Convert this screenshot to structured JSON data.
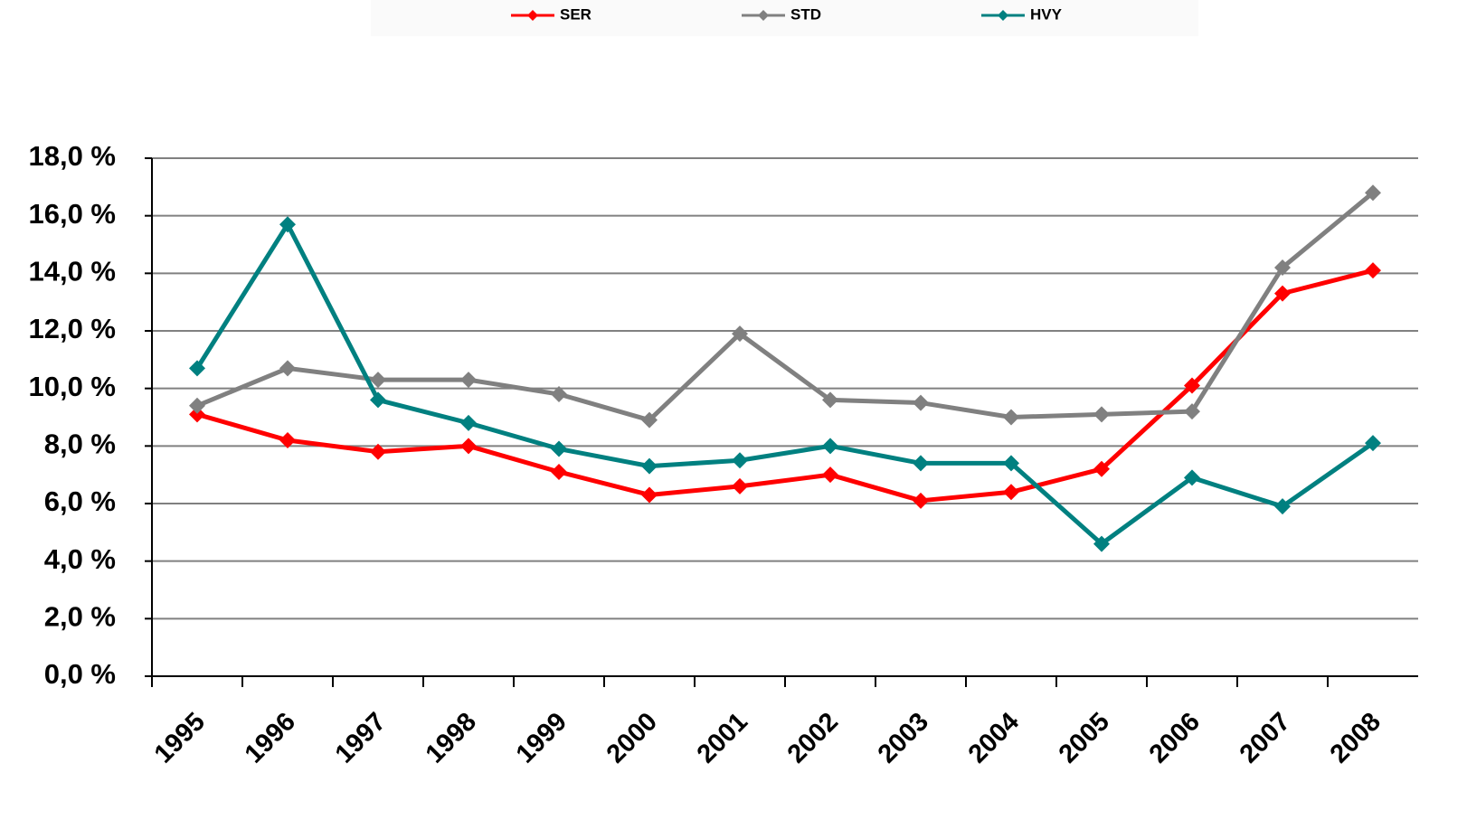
{
  "chart_data": {
    "type": "line",
    "categories": [
      "1995",
      "1996",
      "1997",
      "1998",
      "1999",
      "2000",
      "2001",
      "2002",
      "2003",
      "2004",
      "2005",
      "2006",
      "2007",
      "2008"
    ],
    "series": [
      {
        "name": "SER",
        "color": "#ff0000",
        "values": [
          9.1,
          8.2,
          7.8,
          8.0,
          7.1,
          6.3,
          6.6,
          7.0,
          6.1,
          6.4,
          7.2,
          10.1,
          13.3,
          14.1
        ]
      },
      {
        "name": "STD",
        "color": "#808080",
        "values": [
          9.4,
          10.7,
          10.3,
          10.3,
          9.8,
          8.9,
          11.9,
          9.6,
          9.5,
          9.0,
          9.1,
          9.2,
          14.2,
          16.8
        ]
      },
      {
        "name": "HVY",
        "color": "#008080",
        "values": [
          10.7,
          15.7,
          9.6,
          8.8,
          7.9,
          7.3,
          7.5,
          8.0,
          7.4,
          7.4,
          4.6,
          6.9,
          5.9,
          8.1
        ]
      }
    ],
    "ylim": [
      0,
      18
    ],
    "yticks": [
      {
        "value": 0,
        "label": "0,0 %"
      },
      {
        "value": 2,
        "label": "2,0 %"
      },
      {
        "value": 4,
        "label": "4,0 %"
      },
      {
        "value": 6,
        "label": "6,0 %"
      },
      {
        "value": 8,
        "label": "8,0 %"
      },
      {
        "value": 10,
        "label": "10,0 %"
      },
      {
        "value": 12,
        "label": "12,0 %"
      },
      {
        "value": 14,
        "label": "14,0 %"
      },
      {
        "value": 16,
        "label": "16,0 %"
      },
      {
        "value": 18,
        "label": "18,0 %"
      }
    ],
    "grid": true,
    "legend": "top"
  }
}
